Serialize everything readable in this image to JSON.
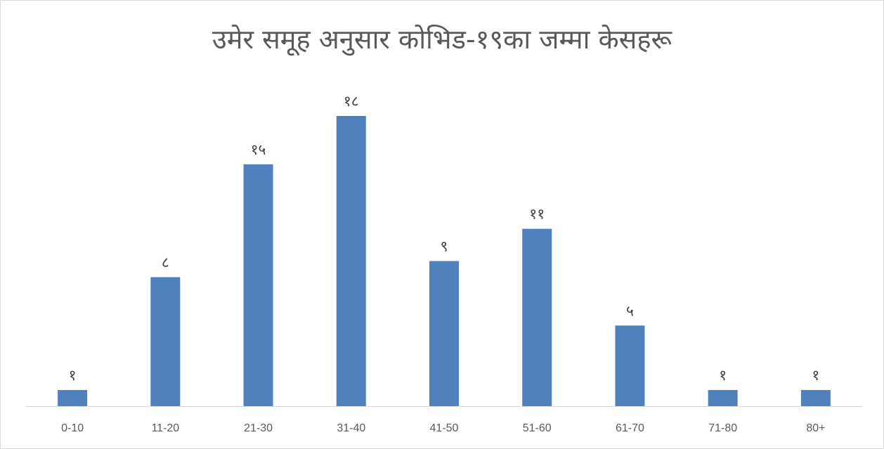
{
  "chart_data": {
    "type": "bar",
    "title": "उमेर समूह अनुसार कोभिड-१९का जम्मा केसहरू",
    "categories": [
      "0-10",
      "11-20",
      "21-30",
      "31-40",
      "41-50",
      "51-60",
      "61-70",
      "71-80",
      "80+"
    ],
    "values": [
      1,
      8,
      15,
      18,
      9,
      11,
      5,
      1,
      1
    ],
    "data_labels": [
      "१",
      "८",
      "१५",
      "१८",
      "९",
      "११",
      "५",
      "१",
      "१"
    ],
    "xlabel": "",
    "ylabel": "",
    "ylim": [
      0,
      18
    ],
    "grid": false,
    "legend": "none",
    "bar_color": "#4f81bd",
    "axis_color": "#d9d9d9"
  }
}
